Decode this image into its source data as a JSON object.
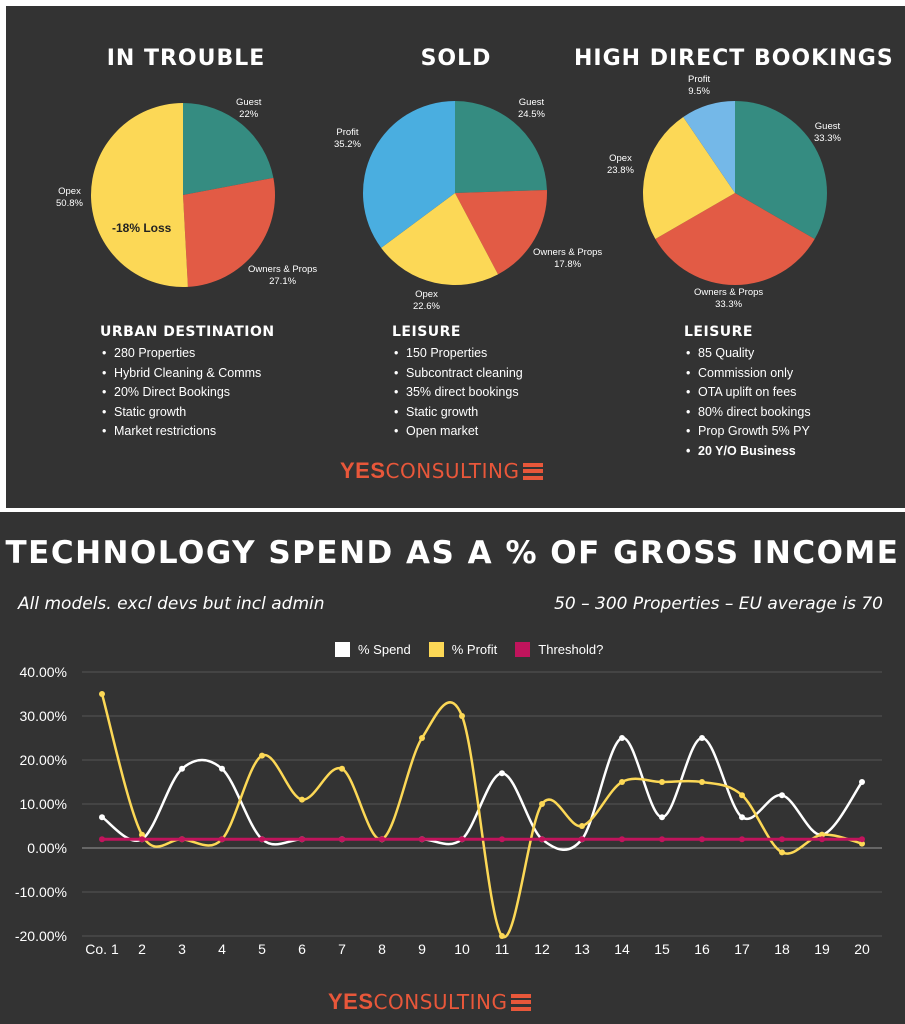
{
  "top": {
    "pies": [
      {
        "title": "IN TROUBLE",
        "center_label": "-18% Loss",
        "slices": [
          {
            "name": "Guest",
            "value": 22,
            "pct": "22%",
            "color": "#358c81"
          },
          {
            "name": "Owners & Props",
            "value": 27.1,
            "pct": "27.1%",
            "color": "#e25b45"
          },
          {
            "name": "Opex",
            "value": 50.8,
            "pct": "50.8%",
            "color": "#fcd856"
          }
        ],
        "block_title": "URBAN DESTINATION",
        "bullets": [
          "280 Properties",
          " Hybrid Cleaning & Comms",
          "20% Direct Bookings",
          "Static growth",
          "Market restrictions"
        ],
        "bold_bullets": []
      },
      {
        "title": "SOLD",
        "center_label": "",
        "slices": [
          {
            "name": "Guest",
            "value": 24.5,
            "pct": "24.5%",
            "color": "#358c81"
          },
          {
            "name": "Owners & Props",
            "value": 17.8,
            "pct": "17.8%",
            "color": "#e25b45"
          },
          {
            "name": "Opex",
            "value": 22.6,
            "pct": "22.6%",
            "color": "#fcd856"
          },
          {
            "name": "Profit",
            "value": 35.2,
            "pct": "35.2%",
            "color": "#4aaee0"
          }
        ],
        "block_title": "LEISURE",
        "bullets": [
          "150 Properties",
          "Subcontract cleaning",
          "35% direct bookings",
          "Static growth",
          "Open market"
        ],
        "bold_bullets": []
      },
      {
        "title": "HIGH DIRECT BOOKINGS",
        "center_label": "",
        "slices": [
          {
            "name": "Guest",
            "value": 33.3,
            "pct": "33.3%",
            "color": "#358c81"
          },
          {
            "name": "Owners & Props",
            "value": 33.3,
            "pct": "33.3%",
            "color": "#e25b45"
          },
          {
            "name": "Opex",
            "value": 23.8,
            "pct": "23.8%",
            "color": "#fcd856"
          },
          {
            "name": "Profit",
            "value": 9.5,
            "pct": "9.5%",
            "color": "#74b8e8"
          }
        ],
        "block_title": "LEISURE",
        "bullets": [
          "85 Quality",
          "Commission only",
          "OTA uplift on fees",
          "80% direct bookings",
          "Prop Growth 5% PY"
        ],
        "bold_bullets": [
          "20 Y/O Business"
        ]
      }
    ]
  },
  "logo": {
    "yes": "YES",
    "consulting": "CONSULTING"
  },
  "brand_color": "#e8573a",
  "bottom": {
    "title": "TECHNOLOGY SPEND AS A % OF GROSS INCOME",
    "subtitle_left": "All models. excl devs but incl admin",
    "subtitle_right": "50 – 300 Properties – EU average is 70"
  },
  "chart_data": {
    "type": "line",
    "categories": [
      "Co. 1",
      "2",
      "3",
      "4",
      "5",
      "6",
      "7",
      "8",
      "9",
      "10",
      "11",
      "12",
      "13",
      "14",
      "15",
      "16",
      "17",
      "18",
      "19",
      "20"
    ],
    "y_ticks": [
      "40.00%",
      "30.00%",
      "20.00%",
      "10.00%",
      "0.00%",
      "-10.00%",
      "-20.00%"
    ],
    "ylim": [
      -20,
      40
    ],
    "grid": true,
    "legend_position": "top-center",
    "series": [
      {
        "name": "% Spend",
        "color": "#ffffff",
        "values": [
          7,
          2,
          18,
          18,
          2,
          2,
          2,
          2,
          2,
          2,
          17,
          2,
          2,
          25,
          7,
          25,
          7,
          12,
          3,
          15
        ]
      },
      {
        "name": "% Profit",
        "color": "#fcd856",
        "values": [
          35,
          3,
          2,
          2,
          21,
          11,
          18,
          2,
          25,
          30,
          -20,
          10,
          5,
          15,
          15,
          15,
          12,
          -1,
          3,
          1
        ]
      },
      {
        "name": "Threshold?",
        "color": "#c0145c",
        "values": [
          2,
          2,
          2,
          2,
          2,
          2,
          2,
          2,
          2,
          2,
          2,
          2,
          2,
          2,
          2,
          2,
          2,
          2,
          2,
          2
        ]
      }
    ]
  }
}
